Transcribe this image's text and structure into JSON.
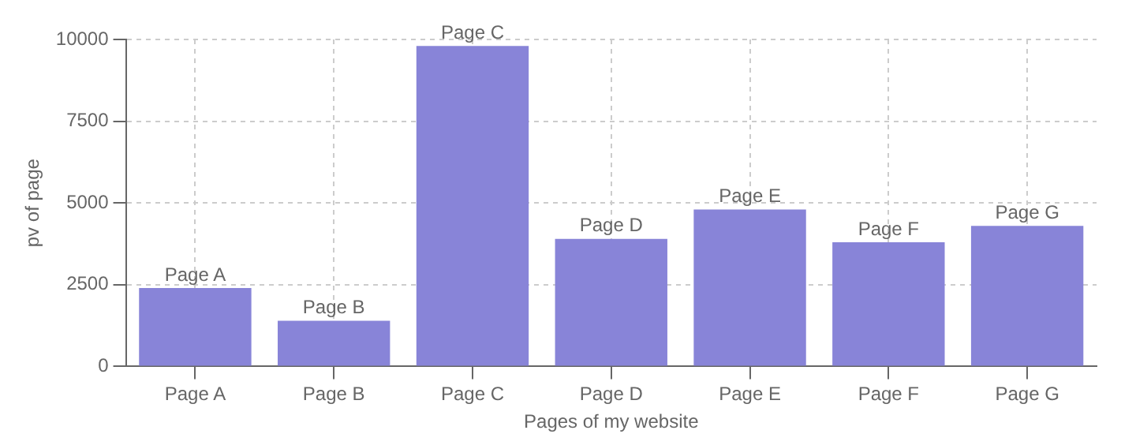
{
  "chart_data": {
    "type": "bar",
    "xlabel": "Pages of my website",
    "ylabel": "pv of page",
    "categories": [
      "Page A",
      "Page B",
      "Page C",
      "Page D",
      "Page E",
      "Page F",
      "Page G"
    ],
    "values": [
      2400,
      1400,
      9800,
      3900,
      4800,
      3800,
      4300
    ],
    "color": "#8884d8",
    "ylim": [
      0,
      10000
    ],
    "yticks": [
      0,
      2500,
      5000,
      7500,
      10000
    ],
    "grid": true,
    "annotations": [
      {
        "text": "Page A",
        "x": "Page A",
        "y": 2400
      },
      {
        "text": "Page B",
        "x": "Page B",
        "y": 1400
      },
      {
        "text": "Page C",
        "x": "Page C",
        "y": 9800
      },
      {
        "text": "Page D",
        "x": "Page D",
        "y": 3900
      },
      {
        "text": "Page E",
        "x": "Page E",
        "y": 4800
      },
      {
        "text": "Page F",
        "x": "Page F",
        "y": 3800
      },
      {
        "text": "Page G",
        "x": "Page G",
        "y": 4300
      }
    ]
  }
}
